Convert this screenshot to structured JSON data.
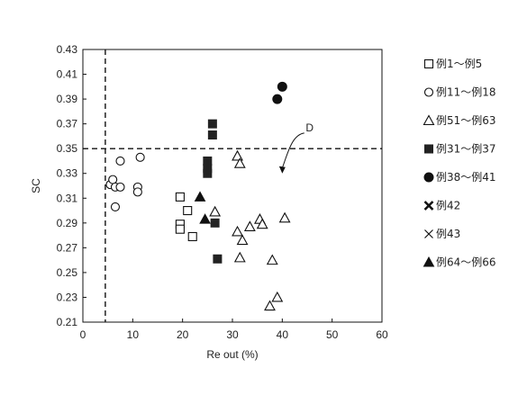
{
  "chart_data": {
    "type": "scatter",
    "xlabel": "Re out (%)",
    "ylabel": "SC",
    "xlim": [
      0,
      60
    ],
    "ylim": [
      0.21,
      0.43
    ],
    "xticks": [
      0,
      10,
      20,
      30,
      40,
      50,
      60
    ],
    "yticks": [
      0.21,
      0.23,
      0.25,
      0.27,
      0.29,
      0.31,
      0.33,
      0.35,
      0.37,
      0.39,
      0.41,
      0.43
    ],
    "grid": false,
    "legend_position": "right",
    "reference_lines": [
      {
        "orientation": "vertical",
        "x": 4.5,
        "style": "dashed"
      },
      {
        "orientation": "horizontal",
        "y": 0.35,
        "style": "dashed"
      }
    ],
    "annotation": {
      "text": "D",
      "x": 45.5,
      "y": 0.364,
      "arrow_to": [
        40.0,
        0.33
      ]
    },
    "series": [
      {
        "name": "例1～例5",
        "marker": "open-square",
        "points": [
          [
            19.5,
            0.311
          ],
          [
            21,
            0.3
          ],
          [
            19.5,
            0.289
          ],
          [
            19.5,
            0.285
          ],
          [
            22,
            0.279
          ]
        ]
      },
      {
        "name": "例11～例18",
        "marker": "open-circle",
        "points": [
          [
            5.5,
            0.321
          ],
          [
            6,
            0.325
          ],
          [
            6.5,
            0.319
          ],
          [
            7.5,
            0.319
          ],
          [
            7.5,
            0.34
          ],
          [
            11.5,
            0.343
          ],
          [
            11,
            0.319
          ],
          [
            11,
            0.315
          ],
          [
            6.5,
            0.303
          ]
        ]
      },
      {
        "name": "例51～例63",
        "marker": "open-triangle",
        "points": [
          [
            26.5,
            0.299
          ],
          [
            31,
            0.344
          ],
          [
            31.5,
            0.338
          ],
          [
            31,
            0.283
          ],
          [
            32,
            0.276
          ],
          [
            33.5,
            0.287
          ],
          [
            35.5,
            0.293
          ],
          [
            36,
            0.289
          ],
          [
            40.5,
            0.294
          ],
          [
            31.5,
            0.262
          ],
          [
            38,
            0.26
          ],
          [
            39,
            0.23
          ],
          [
            37.5,
            0.223
          ]
        ]
      },
      {
        "name": "例31～例37",
        "marker": "filled-square",
        "points": [
          [
            26,
            0.37
          ],
          [
            26,
            0.361
          ],
          [
            25,
            0.34
          ],
          [
            25,
            0.334
          ],
          [
            25,
            0.33
          ],
          [
            26.5,
            0.29
          ],
          [
            27,
            0.261
          ]
        ]
      },
      {
        "name": "例38～例41",
        "marker": "filled-circle",
        "points": [
          [
            40,
            0.4
          ],
          [
            39,
            0.39
          ]
        ]
      },
      {
        "name": "例42",
        "marker": "bold-cross",
        "points": []
      },
      {
        "name": "例43",
        "marker": "cross",
        "points": []
      },
      {
        "name": "例64～例66",
        "marker": "filled-triangle",
        "points": [
          [
            23.5,
            0.311
          ],
          [
            24.5,
            0.293
          ]
        ]
      }
    ]
  }
}
